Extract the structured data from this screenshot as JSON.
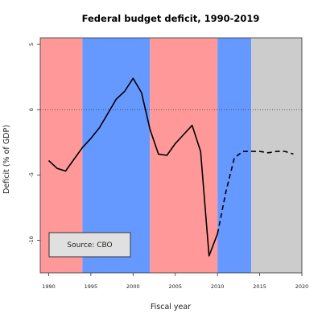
{
  "chart_data": {
    "type": "line",
    "title": "Federal budget deficit, 1990-2019",
    "xlabel": "Fiscal year",
    "ylabel": "Deficit (% of GDP)",
    "xlim": [
      1989,
      2020
    ],
    "ylim": [
      -12.5,
      5.5
    ],
    "x_ticks": [
      "1990",
      "1995",
      "2000",
      "2005",
      "2010",
      "2015",
      "2020"
    ],
    "y_ticks": [
      "5",
      "0",
      "-5",
      "-10"
    ],
    "reference_line": {
      "y": 0,
      "style": "dotted"
    },
    "bands": [
      {
        "from": 1989,
        "to": 1994,
        "color": "#ff9999"
      },
      {
        "from": 1994,
        "to": 2002,
        "color": "#6699ff"
      },
      {
        "from": 2002,
        "to": 2010,
        "color": "#ff9999"
      },
      {
        "from": 2010,
        "to": 2014,
        "color": "#6699ff"
      },
      {
        "from": 2014,
        "to": 2020,
        "color": "#cccccc"
      }
    ],
    "series": [
      {
        "style": "solid",
        "color": "#000000",
        "x": [
          1990,
          1991,
          1992,
          1993,
          1994,
          1995,
          1996,
          1997,
          1998,
          1999,
          2000,
          2001,
          2002,
          2003,
          2004,
          2005,
          2006,
          2007,
          2008,
          2009,
          2010
        ],
        "y": [
          -3.9,
          -4.5,
          -4.7,
          -3.8,
          -2.9,
          -2.2,
          -1.4,
          -0.3,
          0.8,
          1.4,
          2.4,
          1.3,
          -1.5,
          -3.4,
          -3.5,
          -2.6,
          -1.9,
          -1.2,
          -3.2,
          -11.2,
          -9.5
        ]
      },
      {
        "style": "dashed",
        "color": "#000000",
        "x": [
          2010,
          2011,
          2012,
          2013,
          2014,
          2015,
          2016,
          2017,
          2018,
          2019
        ],
        "y": [
          -9.5,
          -6.3,
          -3.7,
          -3.2,
          -3.2,
          -3.2,
          -3.3,
          -3.2,
          -3.2,
          -3.4
        ]
      }
    ],
    "annotation": "Source: CBO"
  }
}
